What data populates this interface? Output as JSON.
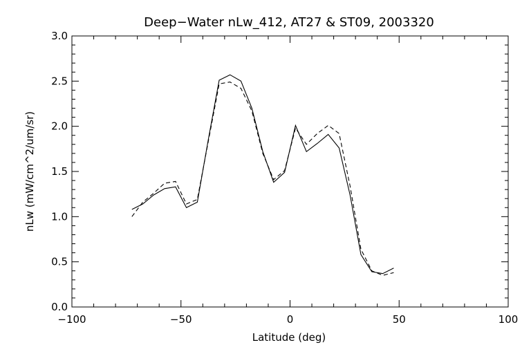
{
  "chart_data": {
    "type": "line",
    "title": "Deep−Water nLw_412, AT27 & ST09, 2003320",
    "xlabel": "Latitude (deg)",
    "ylabel": "nLw (mW/cm^2/um/sr)",
    "xlim": [
      -100,
      100
    ],
    "ylim": [
      0.0,
      3.0
    ],
    "xticks": [
      -100,
      -50,
      0,
      50,
      100
    ],
    "xtick_labels": [
      "−100",
      "−50",
      "0",
      "50",
      "100"
    ],
    "yticks": [
      0.0,
      0.5,
      1.0,
      1.5,
      2.0,
      2.5,
      3.0
    ],
    "ytick_labels": [
      "0.0",
      "0.5",
      "1.0",
      "1.5",
      "2.0",
      "2.5",
      "3.0"
    ],
    "grid": false,
    "legend": "none",
    "series": [
      {
        "style": "solid",
        "x": [
          -72.5,
          -67.5,
          -62.5,
          -57.5,
          -52.5,
          -47.5,
          -42.5,
          -37.5,
          -32.5,
          -27.5,
          -22.5,
          -17.5,
          -12.5,
          -7.5,
          -2.5,
          2.5,
          7.5,
          12.5,
          17.5,
          22.5,
          27.5,
          32.5,
          37.5,
          42.5,
          47.5
        ],
        "y": [
          1.08,
          1.14,
          1.24,
          1.31,
          1.33,
          1.1,
          1.16,
          1.85,
          2.51,
          2.57,
          2.5,
          2.2,
          1.72,
          1.38,
          1.49,
          2.01,
          1.72,
          1.81,
          1.91,
          1.76,
          1.24,
          0.58,
          0.39,
          0.37,
          0.43
        ]
      },
      {
        "style": "dashed",
        "x": [
          -72.5,
          -67.5,
          -62.5,
          -57.5,
          -52.5,
          -47.5,
          -42.5,
          -37.5,
          -32.5,
          -27.5,
          -22.5,
          -17.5,
          -12.5,
          -7.5,
          -2.5,
          2.5,
          7.5,
          12.5,
          17.5,
          22.5,
          27.5,
          32.5,
          37.5,
          42.5,
          47.5
        ],
        "y": [
          1.0,
          1.16,
          1.26,
          1.37,
          1.39,
          1.14,
          1.19,
          1.83,
          2.47,
          2.49,
          2.42,
          2.17,
          1.7,
          1.41,
          1.51,
          1.98,
          1.8,
          1.92,
          2.01,
          1.92,
          1.34,
          0.64,
          0.4,
          0.35,
          0.38
        ]
      }
    ]
  }
}
